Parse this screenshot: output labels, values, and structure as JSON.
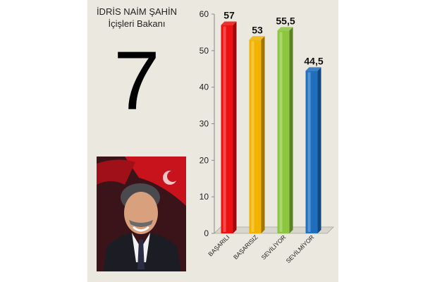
{
  "header": {
    "name": "İDRİS NAİM ŞAHİN",
    "role": "İçişleri Bakanı"
  },
  "rank": "7",
  "photo": {
    "icon": "portrait-photo",
    "flag_color": "#d8141e"
  },
  "chart_data": {
    "type": "bar",
    "title": "",
    "xlabel": "",
    "ylabel": "",
    "categories": [
      "BAŞARILI",
      "BAŞARISIZ",
      "SEVİLİYOR",
      "SEVİLMİYOR"
    ],
    "values": [
      57,
      53,
      55.5,
      44.5
    ],
    "value_labels": [
      "57",
      "53",
      "55,5",
      "44,5"
    ],
    "colors": [
      "#ee1111",
      "#f2b400",
      "#8cc63e",
      "#1f6fc0"
    ],
    "ylim": [
      0,
      60
    ],
    "yticks": [
      0,
      10,
      20,
      30,
      40,
      50,
      60
    ],
    "grid": false,
    "legend": "none"
  }
}
